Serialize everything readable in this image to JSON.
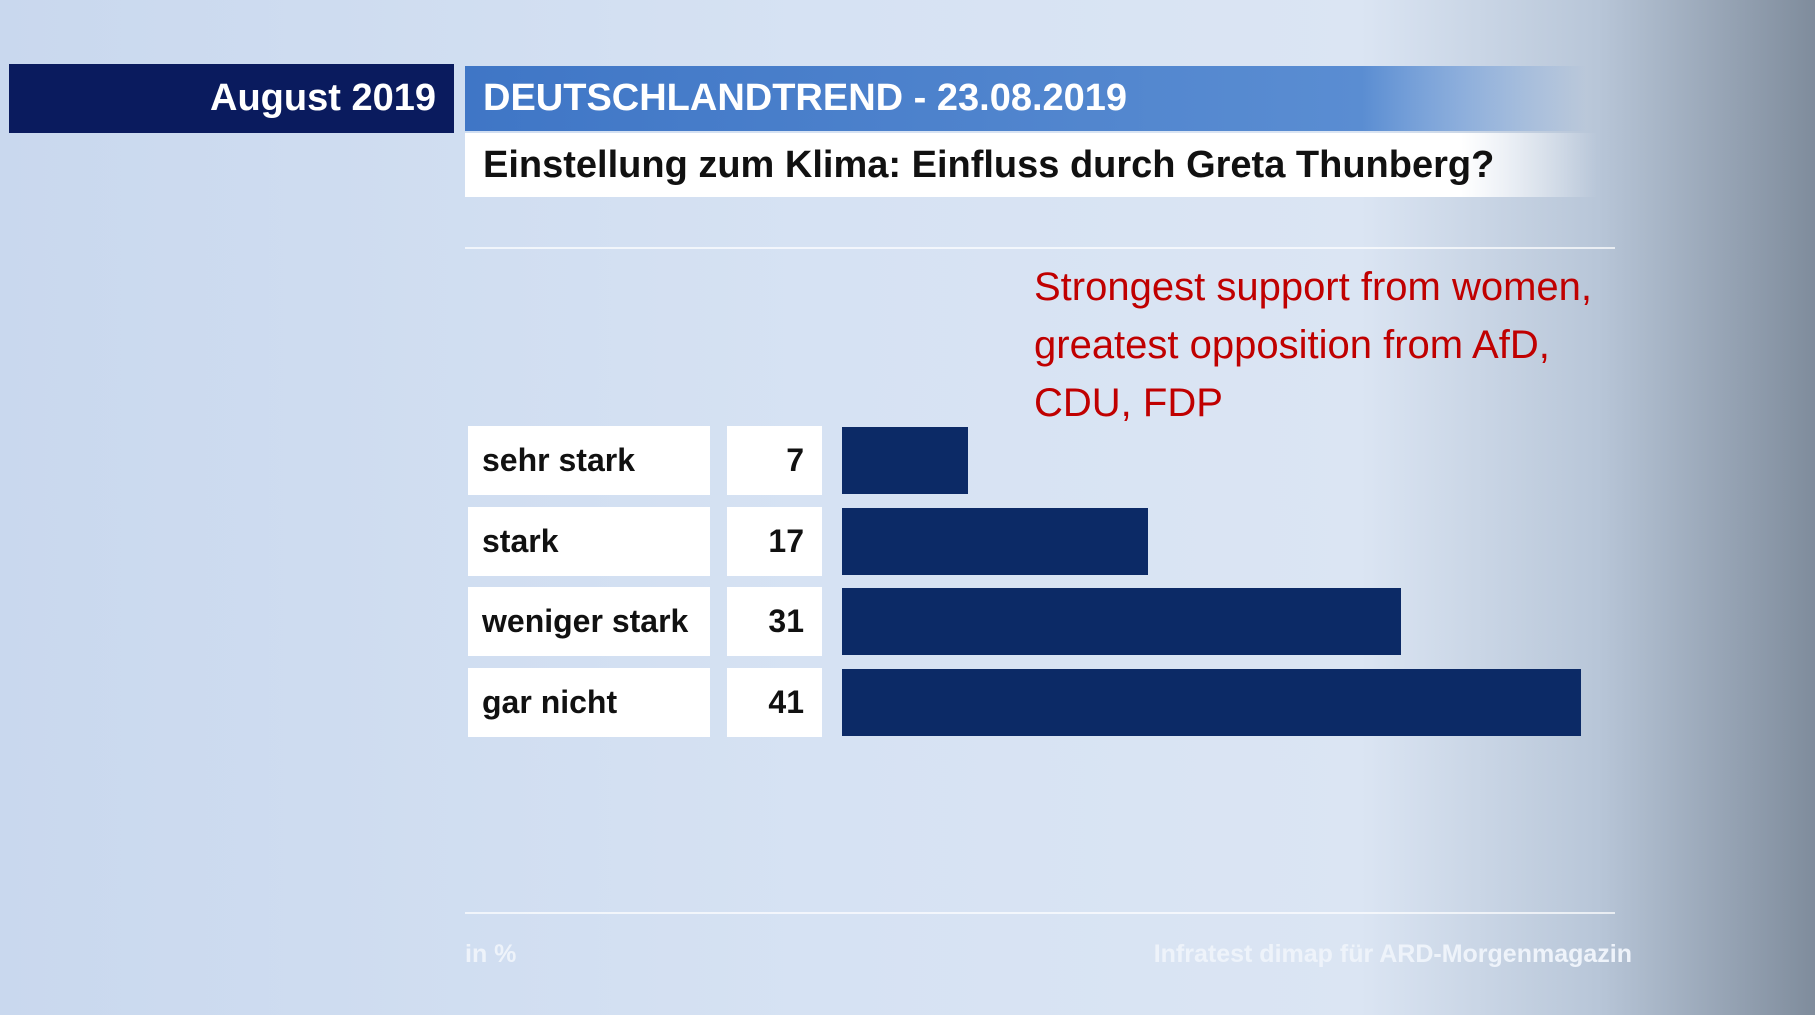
{
  "chart_data": {
    "type": "bar",
    "orientation": "horizontal",
    "badge": "August 2019",
    "title": "DEUTSCHLANDTREND - 23.08.2019",
    "subtitle": "Einstellung zum Klima: Einfluss durch Greta Thunberg?",
    "annotation": "Strongest support from women, greatest opposition from AfD, CDU, FDP",
    "categories": [
      "sehr stark",
      "stark",
      "weniger stark",
      "gar nicht"
    ],
    "values": [
      7,
      17,
      31,
      41
    ],
    "color": "#0c2a66",
    "unit_note": "in %",
    "source": "Infratest dimap für ARD-Morgenmagazin"
  }
}
